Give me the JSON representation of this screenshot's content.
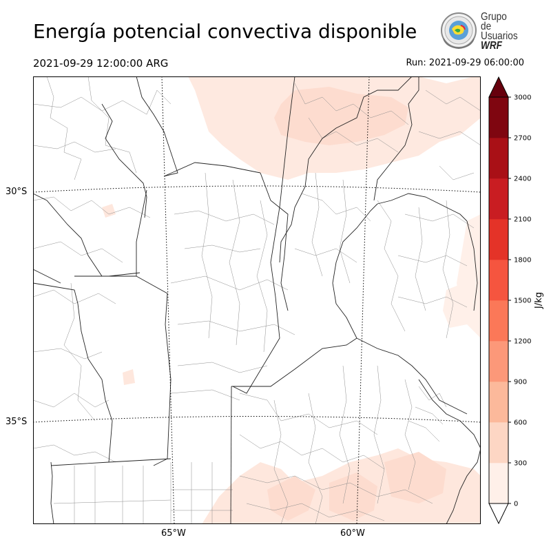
{
  "header": {
    "title": "Energía potencial convectiva disponible",
    "valid_time": "2021-09-29 12:00:00 ARG",
    "run_time": "Run: 2021-09-29 06:00:00"
  },
  "logo": {
    "line1": "Grupo de",
    "line2": "Usuarios",
    "line3": "WRF"
  },
  "map": {
    "lat_labels": [
      "30°S",
      "35°S"
    ],
    "lon_labels": [
      "65°W",
      "60°W"
    ],
    "colors": {
      "border_country": "#222222",
      "border_dept": "#8c8c8c",
      "graticule": "#000000",
      "cape_low": "#fee7dd",
      "cape_mid": "#fcdccd"
    }
  },
  "colorbar": {
    "label": "J/kg",
    "ticks": [
      "0",
      "300",
      "600",
      "900",
      "1200",
      "1500",
      "1800",
      "2100",
      "2400",
      "2700",
      "3000"
    ],
    "colors": [
      "#fff0e9",
      "#fdd6c4",
      "#fcb99b",
      "#fc9879",
      "#fb7858",
      "#f5553f",
      "#e43328",
      "#c91d22",
      "#a91016",
      "#7f0610"
    ],
    "over_color": "#67000d",
    "under_color": "#ffffff"
  }
}
